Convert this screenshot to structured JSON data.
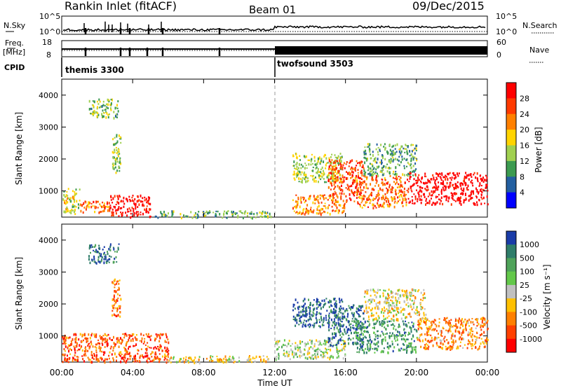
{
  "header": {
    "station": "Rankin Inlet (fitACF)",
    "beam": "Beam 01",
    "date": "09/Dec/2015"
  },
  "top_panels": {
    "nsky_label": "N.Sky",
    "nsky_ticks": [
      "10^5",
      "10^0"
    ],
    "nsearch_label": "N.Search",
    "nsearch_ticks": [
      "10^5",
      "10^0"
    ],
    "freq_label_1": "Freq.",
    "freq_label_2": "[MHz]",
    "freq_ticks": [
      "18",
      "8"
    ],
    "nave_label": "Nave",
    "nave_ticks": [
      "60",
      "0"
    ],
    "cpid_label": "CPID",
    "cpid_modes": [
      {
        "name": "themis 3300",
        "start_hour": 0
      },
      {
        "name": "twofsound 3503",
        "start_hour": 12
      }
    ]
  },
  "chart_data": [
    {
      "type": "heatmap",
      "title": "",
      "xlabel": "Time UT",
      "ylabel": "Slant Range [km]",
      "xlim": [
        0,
        24
      ],
      "ylim": [
        180,
        4500
      ],
      "x_ticks": [
        "00:00",
        "04:00",
        "08:00",
        "12:00",
        "16:00",
        "20:00",
        "00:00"
      ],
      "y_ticks": [
        "1000",
        "2000",
        "3000",
        "4000"
      ],
      "colorbar_label": "Power [dB]",
      "colorbar_ticks": [
        "28",
        "24",
        "20",
        "16",
        "12",
        "8",
        "4"
      ],
      "colorbar_colors": [
        "#ff0000",
        "#ff3a00",
        "#ff8000",
        "#ffd400",
        "#a0d050",
        "#3c9b50",
        "#235fa0",
        "#0000ff"
      ],
      "regions": [
        {
          "x": [
            0.0,
            1.0
          ],
          "y": [
            300,
            1100
          ],
          "level": 0.5
        },
        {
          "x": [
            1.0,
            2.7
          ],
          "y": [
            350,
            700
          ],
          "level": 0.75
        },
        {
          "x": [
            2.7,
            5.0
          ],
          "y": [
            200,
            900
          ],
          "level": 0.95
        },
        {
          "x": [
            5.0,
            11.8
          ],
          "y": [
            180,
            400
          ],
          "level": 0.35
        },
        {
          "x": [
            1.5,
            3.2
          ],
          "y": [
            3300,
            3900
          ],
          "level": 0.4
        },
        {
          "x": [
            2.8,
            3.3
          ],
          "y": [
            1600,
            2800
          ],
          "level": 0.45
        },
        {
          "x": [
            13.0,
            15.8
          ],
          "y": [
            1300,
            2200
          ],
          "level": 0.45
        },
        {
          "x": [
            13.0,
            16.0
          ],
          "y": [
            300,
            900
          ],
          "level": 0.7
        },
        {
          "x": [
            15.0,
            17.0
          ],
          "y": [
            700,
            2000
          ],
          "level": 0.8
        },
        {
          "x": [
            16.5,
            19.5
          ],
          "y": [
            500,
            1500
          ],
          "level": 0.75
        },
        {
          "x": [
            17.0,
            20.0
          ],
          "y": [
            1500,
            2500
          ],
          "level": 0.35
        },
        {
          "x": [
            19.5,
            24.0
          ],
          "y": [
            600,
            1600
          ],
          "level": 1.0
        }
      ]
    },
    {
      "type": "heatmap",
      "title": "",
      "xlabel": "Time UT",
      "ylabel": "Slant Range [km]",
      "xlim": [
        0,
        24
      ],
      "ylim": [
        180,
        4500
      ],
      "x_ticks": [
        "00:00",
        "04:00",
        "08:00",
        "12:00",
        "16:00",
        "20:00",
        "00:00"
      ],
      "y_ticks": [
        "1000",
        "2000",
        "3000",
        "4000"
      ],
      "colorbar_label": "Velocity [m s⁻¹]",
      "colorbar_ticks": [
        "1000",
        "500",
        "100",
        "25",
        "-25",
        "-100",
        "-500",
        "-1000"
      ],
      "colorbar_colors": [
        "#1a3ca8",
        "#2f7d6a",
        "#4fa35a",
        "#63c84a",
        "#c0c0c0",
        "#ffc000",
        "#ff8000",
        "#ff4000",
        "#ff0000"
      ],
      "regions": [
        {
          "x": [
            0.0,
            6.0
          ],
          "y": [
            200,
            1100
          ],
          "level": 0.2
        },
        {
          "x": [
            6.0,
            12.0
          ],
          "y": [
            180,
            400
          ],
          "level": 0.45
        },
        {
          "x": [
            1.5,
            3.2
          ],
          "y": [
            3300,
            3900
          ],
          "level": 0.85
        },
        {
          "x": [
            2.8,
            3.3
          ],
          "y": [
            1600,
            2800
          ],
          "level": 0.25
        },
        {
          "x": [
            13.0,
            15.8
          ],
          "y": [
            1300,
            2200
          ],
          "level": 0.9
        },
        {
          "x": [
            12.0,
            16.0
          ],
          "y": [
            300,
            900
          ],
          "level": 0.55
        },
        {
          "x": [
            15.0,
            17.0
          ],
          "y": [
            700,
            2000
          ],
          "level": 0.85
        },
        {
          "x": [
            16.5,
            20.0
          ],
          "y": [
            500,
            1500
          ],
          "level": 0.75
        },
        {
          "x": [
            17.0,
            20.5
          ],
          "y": [
            1500,
            2500
          ],
          "level": 0.45
        },
        {
          "x": [
            20.0,
            24.0
          ],
          "y": [
            600,
            1600
          ],
          "level": 0.3
        }
      ]
    }
  ]
}
